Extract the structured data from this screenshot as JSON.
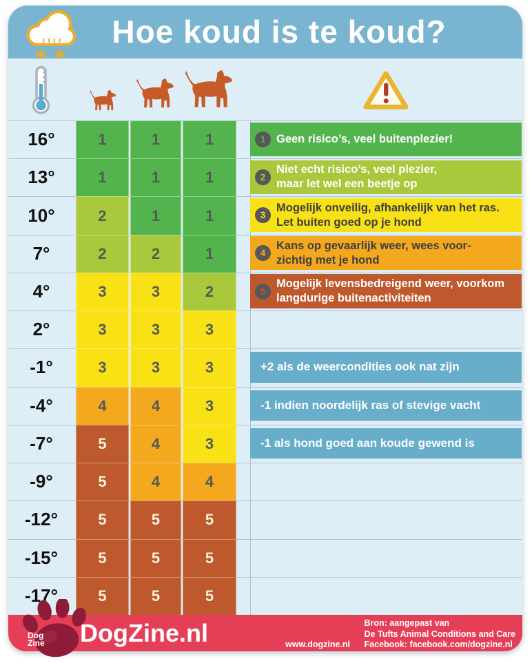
{
  "title": "Hoe koud is te koud?",
  "chart_data": {
    "type": "heatmap",
    "title": "Hoe koud is te koud?",
    "x_categories": [
      "kleine hond",
      "middelgrote hond",
      "grote hond"
    ],
    "y_categories": [
      "16°",
      "13°",
      "10°",
      "7°",
      "4°",
      "2°",
      "-1°",
      "-4°",
      "-7°",
      "-9°",
      "-12°",
      "-15°",
      "-17°"
    ],
    "values": [
      [
        1,
        1,
        1
      ],
      [
        1,
        1,
        1
      ],
      [
        2,
        1,
        1
      ],
      [
        2,
        2,
        1
      ],
      [
        3,
        3,
        2
      ],
      [
        3,
        3,
        3
      ],
      [
        3,
        3,
        3
      ],
      [
        4,
        4,
        3
      ],
      [
        5,
        4,
        3
      ],
      [
        5,
        4,
        4
      ],
      [
        5,
        5,
        5
      ],
      [
        5,
        5,
        5
      ],
      [
        5,
        5,
        5
      ]
    ],
    "legend_position": "right",
    "scale_note": "1 = geen risico, 5 = levensbedreigend"
  },
  "level_colors": {
    "1": "#53b44e",
    "2": "#a9c83b",
    "3": "#f8e114",
    "4": "#f3a81e",
    "5": "#bd592c"
  },
  "legend": [
    {
      "num": "1",
      "lines": [
        "Geen risico’s, veel buitenplezier!"
      ],
      "text_color": "#ffffff"
    },
    {
      "num": "2",
      "lines": [
        "Niet echt risico’s, veel plezier,",
        "maar let wel een beetje op"
      ],
      "text_color": "#ffffff"
    },
    {
      "num": "3",
      "lines": [
        "Mogelijk onveilig, afhankelijk van het ras.",
        "Let buiten goed op je hond"
      ],
      "text_color": "#3f3f41"
    },
    {
      "num": "4",
      "lines": [
        "Kans op gevaarlijk weer, wees voor-",
        "zichtig met je hond"
      ],
      "text_color": "#3f3f41"
    },
    {
      "num": "5",
      "lines": [
        "Mogelijk levensbedreigend weer, voorkom",
        "langdurige buitenactiviteiten"
      ],
      "text_color": "#ffffff"
    }
  ],
  "notes": [
    "+2 als de weercondities ook nat zijn",
    "-1 indien noordelijk ras of stevige vacht",
    "-1 als hond goed aan koude gewend is"
  ],
  "footer": {
    "brand": "DogZine.nl",
    "paw_line1": "Dog",
    "paw_line2": "Zine",
    "source_line1": "Bron: aangepast van",
    "source_line2": "De Tufts Animal Conditions and Care",
    "website": "www.dogzine.nl",
    "facebook": "Facebook: facebook.com/dogzine.nl"
  },
  "icons": {
    "header": "cloud-snow-icon",
    "temperature": "thermometer-icon",
    "column1": "small-dog-icon",
    "column2": "medium-dog-icon",
    "column3": "large-dog-icon",
    "legend_header": "warning-triangle-icon",
    "footer": "paw-print-icon"
  },
  "colors": {
    "header_bg": "#79b4d0",
    "panel_bg": "#ddeef6",
    "note_bg": "#68adca",
    "footer_bg": "#e53f58",
    "paw": "#8e1c38",
    "dog": "#c65a28",
    "grid_line": "#a3b7be",
    "cell_text_dark": "#555a57",
    "cell_text_light": "#faf3dc",
    "badge_bg": "#55575a"
  }
}
